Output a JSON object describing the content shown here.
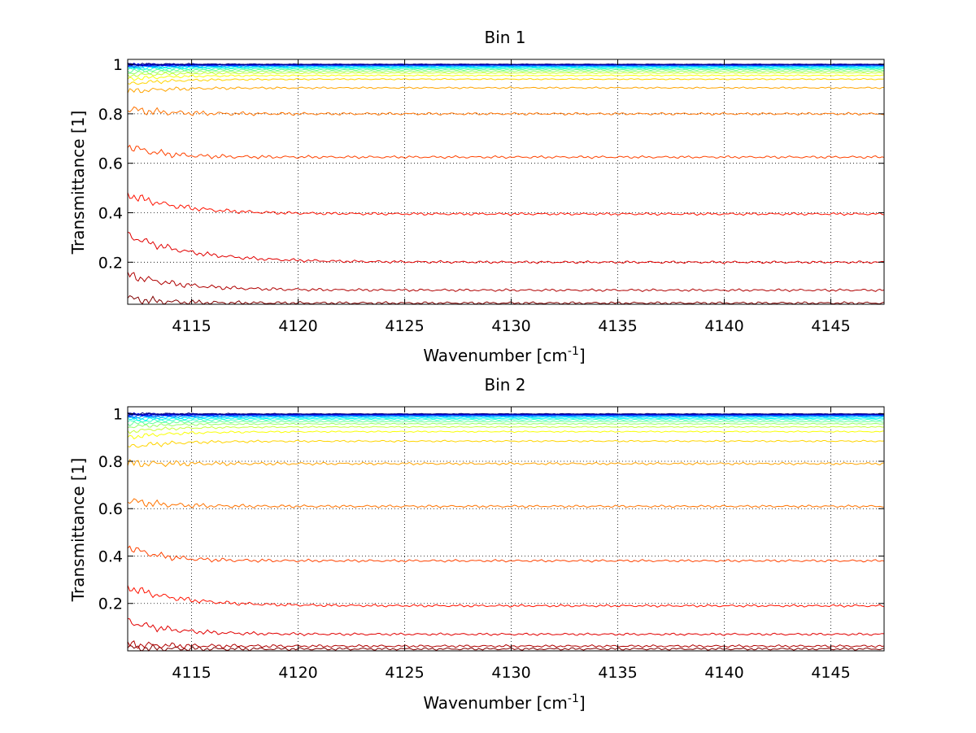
{
  "chart_data": [
    {
      "type": "line",
      "title": "Bin 1",
      "xlabel": "Wavenumber [cm",
      "xlabel_sup": "-1",
      "xlabel_tail": "]",
      "ylabel": "Transmittance [1]",
      "xlim": [
        4112,
        4147.5
      ],
      "ylim": [
        0.03,
        1.02
      ],
      "xticks": [
        4115,
        4120,
        4125,
        4130,
        4135,
        4140,
        4145
      ],
      "xtick_labels": [
        "4115",
        "4120",
        "4125",
        "4130",
        "4135",
        "4140",
        "4145"
      ],
      "yticks": [
        0.2,
        0.4,
        0.6,
        0.8,
        1
      ],
      "ytick_labels": [
        "0.2",
        "0.4",
        "0.6",
        "0.8",
        "1"
      ],
      "grid": true,
      "colormap": "jet",
      "series": [
        {
          "start": 0.055,
          "end": 0.035,
          "decay": 1.5
        },
        {
          "start": 0.15,
          "end": 0.087,
          "decay": 2.5
        },
        {
          "start": 0.31,
          "end": 0.2,
          "decay": 3.0
        },
        {
          "start": 0.475,
          "end": 0.395,
          "decay": 2.5
        },
        {
          "start": 0.67,
          "end": 0.625,
          "decay": 1.5
        },
        {
          "start": 0.82,
          "end": 0.8,
          "decay": 1.5
        },
        {
          "start": 0.89,
          "end": 0.905,
          "decay": 2.0
        },
        {
          "start": 0.92,
          "end": 0.94,
          "decay": 2.0
        },
        {
          "start": 0.94,
          "end": 0.955,
          "decay": 2.0
        },
        {
          "start": 0.955,
          "end": 0.965,
          "decay": 2.0
        },
        {
          "start": 0.965,
          "end": 0.972,
          "decay": 2.0
        },
        {
          "start": 0.973,
          "end": 0.978,
          "decay": 2.0
        },
        {
          "start": 0.98,
          "end": 0.983,
          "decay": 2.0
        },
        {
          "start": 0.985,
          "end": 0.987,
          "decay": 2.0
        },
        {
          "start": 0.989,
          "end": 0.99,
          "decay": 2.0
        },
        {
          "start": 0.992,
          "end": 0.993,
          "decay": 2.0
        },
        {
          "start": 0.994,
          "end": 0.995,
          "decay": 2.0
        },
        {
          "start": 0.996,
          "end": 0.997,
          "decay": 2.0
        },
        {
          "start": 0.997,
          "end": 0.998,
          "decay": 2.0
        },
        {
          "start": 0.998,
          "end": 0.999,
          "decay": 2.0
        },
        {
          "start": 0.999,
          "end": 1.0,
          "decay": 2.0
        },
        {
          "start": 1.0,
          "end": 1.0,
          "decay": 2.0
        }
      ]
    },
    {
      "type": "line",
      "title": "Bin 2",
      "xlabel": "Wavenumber [cm",
      "xlabel_sup": "-1",
      "xlabel_tail": "]",
      "ylabel": "Transmittance [1]",
      "xlim": [
        4112,
        4147.5
      ],
      "ylim": [
        0.0,
        1.03
      ],
      "xticks": [
        4115,
        4120,
        4125,
        4130,
        4135,
        4140,
        4145
      ],
      "xtick_labels": [
        "4115",
        "4120",
        "4125",
        "4130",
        "4135",
        "4140",
        "4145"
      ],
      "yticks": [
        0.2,
        0.4,
        0.6,
        0.8,
        1
      ],
      "ytick_labels": [
        "0.2",
        "0.4",
        "0.6",
        "0.8",
        "1"
      ],
      "grid": true,
      "colormap": "jet",
      "series": [
        {
          "start": 0.012,
          "end": 0.008,
          "decay": 1.5
        },
        {
          "start": 0.028,
          "end": 0.02,
          "decay": 1.5
        },
        {
          "start": 0.125,
          "end": 0.07,
          "decay": 2.0
        },
        {
          "start": 0.27,
          "end": 0.19,
          "decay": 2.5
        },
        {
          "start": 0.44,
          "end": 0.38,
          "decay": 1.5
        },
        {
          "start": 0.635,
          "end": 0.61,
          "decay": 1.5
        },
        {
          "start": 0.79,
          "end": 0.79,
          "decay": 1.5
        },
        {
          "start": 0.86,
          "end": 0.885,
          "decay": 2.0
        },
        {
          "start": 0.9,
          "end": 0.925,
          "decay": 2.0
        },
        {
          "start": 0.925,
          "end": 0.945,
          "decay": 2.0
        },
        {
          "start": 0.945,
          "end": 0.958,
          "decay": 2.0
        },
        {
          "start": 0.958,
          "end": 0.967,
          "decay": 2.0
        },
        {
          "start": 0.968,
          "end": 0.975,
          "decay": 2.0
        },
        {
          "start": 0.976,
          "end": 0.981,
          "decay": 2.0
        },
        {
          "start": 0.982,
          "end": 0.986,
          "decay": 2.0
        },
        {
          "start": 0.987,
          "end": 0.99,
          "decay": 2.0
        },
        {
          "start": 0.991,
          "end": 0.993,
          "decay": 2.0
        },
        {
          "start": 0.994,
          "end": 0.995,
          "decay": 2.0
        },
        {
          "start": 0.996,
          "end": 0.997,
          "decay": 2.0
        },
        {
          "start": 0.998,
          "end": 0.998,
          "decay": 2.0
        },
        {
          "start": 0.999,
          "end": 0.999,
          "decay": 2.0
        },
        {
          "start": 1.0,
          "end": 1.0,
          "decay": 2.0
        }
      ]
    }
  ]
}
